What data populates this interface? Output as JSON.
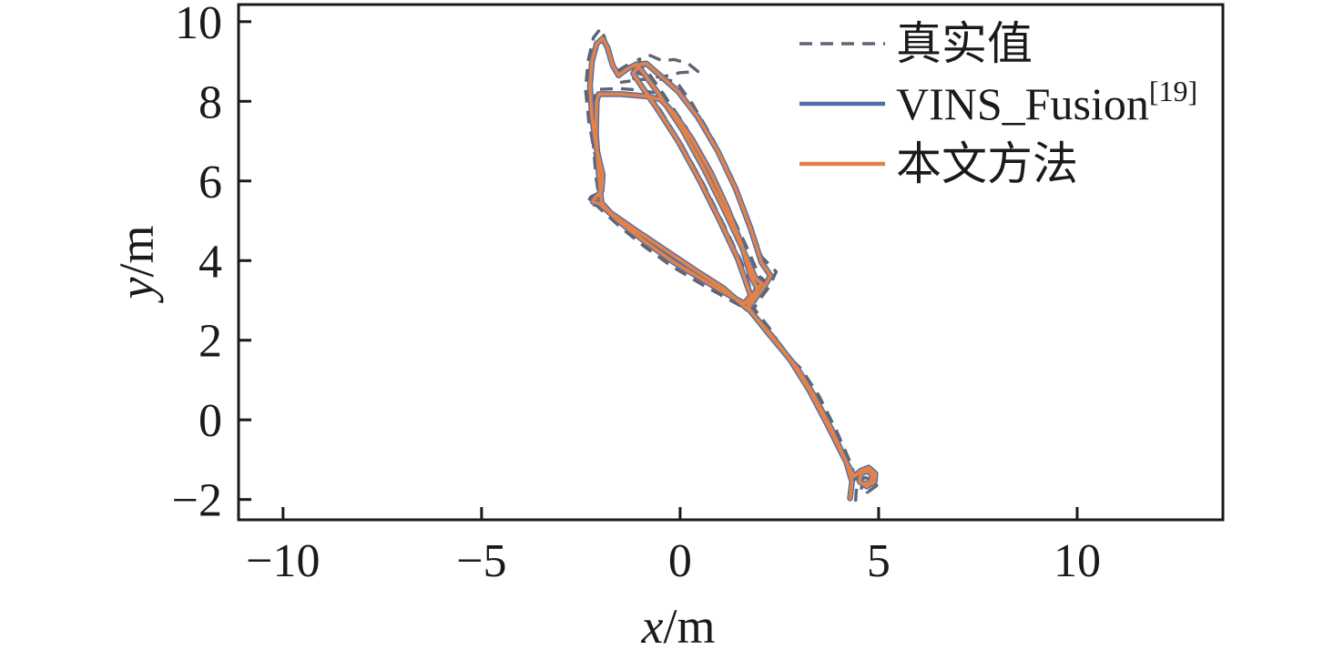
{
  "figure": {
    "description": "Trajectory comparison plot of ground truth vs VINS_Fusion vs proposed method"
  },
  "chart_data": {
    "type": "line",
    "title": "",
    "xlabel_var": "x",
    "xlabel_unit": "/m",
    "ylabel_var": "y",
    "ylabel_unit": "/m",
    "xlim": [
      -11.12,
      13.67
    ],
    "ylim": [
      -2.51,
      10.43
    ],
    "xticks": [
      -10,
      -5,
      0,
      5,
      10
    ],
    "yticks": [
      10,
      8,
      6,
      4,
      2,
      0,
      -2
    ],
    "grid": false,
    "legend_position": "top-right-inside",
    "background": "#ffffff",
    "axis_color": "#1a1a1a",
    "series": [
      {
        "label": "真实值",
        "superscript": "",
        "color": "#5d6573",
        "width": 3.4,
        "dash": [
          14,
          9
        ],
        "points": [
          [
            4.42,
            -2.05
          ],
          [
            4.45,
            -1.6
          ],
          [
            4.3,
            -1.1
          ],
          [
            3.95,
            -0.3
          ],
          [
            3.5,
            0.6
          ],
          [
            3.05,
            1.28
          ],
          [
            2.8,
            1.52
          ],
          [
            2.4,
            2.05
          ],
          [
            1.95,
            2.55
          ],
          [
            1.82,
            2.78
          ],
          [
            1.9,
            3.0
          ],
          [
            2.05,
            3.2
          ],
          [
            2.18,
            3.45
          ],
          [
            2.0,
            3.6
          ],
          [
            1.65,
            4.4
          ],
          [
            1.2,
            5.35
          ],
          [
            0.7,
            6.35
          ],
          [
            0.15,
            7.35
          ],
          [
            -0.5,
            8.3
          ],
          [
            -0.9,
            8.85
          ],
          [
            -1.05,
            9.05
          ],
          [
            -0.75,
            9.15
          ],
          [
            -0.45,
            9.02
          ],
          [
            -0.15,
            9.05
          ],
          [
            0.2,
            8.95
          ],
          [
            0.45,
            8.75
          ],
          [
            0.0,
            8.72
          ],
          [
            -0.5,
            8.6
          ],
          [
            -1.0,
            8.68
          ],
          [
            -1.35,
            8.9
          ],
          [
            -1.6,
            8.75
          ],
          [
            -1.78,
            9.05
          ],
          [
            -1.9,
            9.6
          ],
          [
            -2.0,
            9.83
          ],
          [
            -2.18,
            9.6
          ],
          [
            -2.32,
            9.0
          ],
          [
            -2.38,
            8.3
          ],
          [
            -2.3,
            7.5
          ],
          [
            -2.15,
            6.7
          ],
          [
            -2.0,
            6.1
          ],
          [
            -2.05,
            5.7
          ],
          [
            -2.25,
            5.6
          ],
          [
            -2.33,
            5.45
          ],
          [
            -2.1,
            5.38
          ],
          [
            -1.55,
            4.88
          ],
          [
            -0.9,
            4.35
          ],
          [
            -0.2,
            3.85
          ],
          [
            0.55,
            3.4
          ],
          [
            1.18,
            3.05
          ],
          [
            1.6,
            2.82
          ],
          [
            1.85,
            3.05
          ],
          [
            1.55,
            3.95
          ],
          [
            1.1,
            4.9
          ],
          [
            0.6,
            5.9
          ],
          [
            0.05,
            6.9
          ],
          [
            -0.5,
            7.78
          ],
          [
            -0.88,
            8.3
          ],
          [
            -1.12,
            8.6
          ],
          [
            -1.3,
            8.5
          ],
          [
            -1.48,
            8.48
          ],
          [
            -0.95,
            8.55
          ],
          [
            -0.45,
            8.55
          ],
          [
            -0.1,
            8.5
          ],
          [
            0.3,
            7.95
          ],
          [
            0.8,
            7.1
          ],
          [
            1.28,
            6.15
          ],
          [
            1.7,
            5.1
          ],
          [
            2.05,
            4.1
          ],
          [
            2.42,
            3.72
          ],
          [
            2.25,
            3.35
          ],
          [
            1.95,
            2.95
          ],
          [
            1.82,
            2.72
          ],
          [
            1.2,
            3.22
          ],
          [
            0.5,
            3.68
          ],
          [
            -0.3,
            4.18
          ],
          [
            -1.05,
            4.68
          ],
          [
            -1.7,
            5.12
          ],
          [
            -2.0,
            5.35
          ],
          [
            -2.12,
            6.1
          ],
          [
            -2.2,
            7.1
          ],
          [
            -2.18,
            7.95
          ],
          [
            -2.1,
            8.3
          ],
          [
            -1.55,
            8.32
          ],
          [
            -1.0,
            8.28
          ],
          [
            -0.6,
            8.2
          ],
          [
            -0.2,
            7.8
          ],
          [
            0.25,
            7.15
          ],
          [
            0.72,
            6.3
          ],
          [
            1.15,
            5.4
          ],
          [
            1.5,
            4.5
          ],
          [
            1.72,
            3.7
          ],
          [
            1.9,
            3.35
          ],
          [
            1.78,
            2.9
          ],
          [
            2.25,
            2.3
          ],
          [
            2.68,
            1.62
          ],
          [
            2.9,
            1.3
          ],
          [
            3.35,
            0.55
          ],
          [
            3.85,
            -0.35
          ],
          [
            4.25,
            -1.15
          ],
          [
            4.5,
            -1.55
          ],
          [
            4.65,
            -1.45
          ],
          [
            4.85,
            -1.5
          ],
          [
            4.95,
            -1.65
          ],
          [
            4.75,
            -1.8
          ],
          [
            4.55,
            -1.78
          ],
          [
            4.6,
            -1.6
          ],
          [
            4.78,
            -1.62
          ],
          [
            4.7,
            -1.85
          ]
        ]
      },
      {
        "label": "VINS_Fusion",
        "superscript": "[19]",
        "color": "#4f6da6",
        "width": 6.5,
        "dash": null,
        "points": [
          [
            4.28,
            -1.97
          ],
          [
            4.33,
            -1.55
          ],
          [
            4.18,
            -1.05
          ],
          [
            3.82,
            -0.25
          ],
          [
            3.35,
            0.65
          ],
          [
            2.95,
            1.3
          ],
          [
            2.72,
            1.58
          ],
          [
            2.3,
            2.12
          ],
          [
            1.86,
            2.62
          ],
          [
            1.7,
            2.82
          ],
          [
            1.77,
            3.05
          ],
          [
            1.92,
            3.25
          ],
          [
            2.06,
            3.42
          ],
          [
            1.9,
            3.55
          ],
          [
            1.55,
            4.35
          ],
          [
            1.1,
            5.3
          ],
          [
            0.6,
            6.3
          ],
          [
            0.05,
            7.3
          ],
          [
            -0.55,
            8.2
          ],
          [
            -0.95,
            8.75
          ],
          [
            -1.1,
            8.93
          ],
          [
            -1.35,
            8.8
          ],
          [
            -1.55,
            8.65
          ],
          [
            -1.7,
            8.9
          ],
          [
            -1.83,
            9.35
          ],
          [
            -1.95,
            9.58
          ],
          [
            -2.1,
            9.45
          ],
          [
            -2.22,
            9.0
          ],
          [
            -2.27,
            8.4
          ],
          [
            -2.22,
            7.6
          ],
          [
            -2.1,
            6.8
          ],
          [
            -1.95,
            6.15
          ],
          [
            -1.98,
            5.75
          ],
          [
            -2.12,
            5.6
          ],
          [
            -2.2,
            5.48
          ],
          [
            -2.02,
            5.42
          ],
          [
            -1.5,
            4.95
          ],
          [
            -0.85,
            4.45
          ],
          [
            -0.15,
            3.95
          ],
          [
            0.6,
            3.5
          ],
          [
            1.2,
            3.15
          ],
          [
            1.62,
            2.92
          ],
          [
            1.78,
            3.12
          ],
          [
            1.45,
            4.05
          ],
          [
            1.0,
            5.0
          ],
          [
            0.5,
            6.0
          ],
          [
            -0.05,
            7.0
          ],
          [
            -0.6,
            7.85
          ],
          [
            -0.95,
            8.35
          ],
          [
            -1.18,
            8.7
          ],
          [
            -1.02,
            8.92
          ],
          [
            -0.85,
            8.95
          ],
          [
            -0.45,
            8.6
          ],
          [
            -0.05,
            8.25
          ],
          [
            0.45,
            7.6
          ],
          [
            0.95,
            6.75
          ],
          [
            1.4,
            5.8
          ],
          [
            1.78,
            4.8
          ],
          [
            2.05,
            3.95
          ],
          [
            2.28,
            3.62
          ],
          [
            2.1,
            3.32
          ],
          [
            1.85,
            3.0
          ],
          [
            1.7,
            2.78
          ],
          [
            1.1,
            3.3
          ],
          [
            0.4,
            3.75
          ],
          [
            -0.35,
            4.25
          ],
          [
            -1.1,
            4.75
          ],
          [
            -1.75,
            5.2
          ],
          [
            -1.98,
            5.45
          ],
          [
            -2.05,
            6.2
          ],
          [
            -2.12,
            7.2
          ],
          [
            -2.1,
            8.0
          ],
          [
            -2.05,
            8.18
          ],
          [
            -1.5,
            8.18
          ],
          [
            -0.9,
            8.13
          ],
          [
            -0.5,
            8.05
          ],
          [
            -0.15,
            7.7
          ],
          [
            0.3,
            7.05
          ],
          [
            0.78,
            6.2
          ],
          [
            1.2,
            5.3
          ],
          [
            1.55,
            4.4
          ],
          [
            1.78,
            3.6
          ],
          [
            1.95,
            3.3
          ],
          [
            1.72,
            2.8
          ],
          [
            2.2,
            2.2
          ],
          [
            2.6,
            1.72
          ],
          [
            2.78,
            1.5
          ],
          [
            3.25,
            0.75
          ],
          [
            3.7,
            -0.1
          ],
          [
            4.1,
            -0.9
          ],
          [
            4.38,
            -1.42
          ],
          [
            4.55,
            -1.28
          ],
          [
            4.75,
            -1.2
          ],
          [
            4.92,
            -1.35
          ],
          [
            4.9,
            -1.55
          ],
          [
            4.7,
            -1.67
          ],
          [
            4.52,
            -1.55
          ],
          [
            4.55,
            -1.35
          ],
          [
            4.72,
            -1.28
          ],
          [
            4.85,
            -1.4
          ],
          [
            4.78,
            -1.58
          ],
          [
            4.62,
            -1.6
          ]
        ]
      },
      {
        "label": "本文方法",
        "superscript": "",
        "color": "#e0824a",
        "width": 3.8,
        "dash": null,
        "points": [
          [
            4.28,
            -1.97
          ],
          [
            4.33,
            -1.55
          ],
          [
            4.18,
            -1.05
          ],
          [
            3.82,
            -0.25
          ],
          [
            3.35,
            0.65
          ],
          [
            2.95,
            1.3
          ],
          [
            2.72,
            1.58
          ],
          [
            2.3,
            2.12
          ],
          [
            1.86,
            2.62
          ],
          [
            1.7,
            2.82
          ],
          [
            1.77,
            3.05
          ],
          [
            1.92,
            3.25
          ],
          [
            2.06,
            3.42
          ],
          [
            1.9,
            3.55
          ],
          [
            1.55,
            4.35
          ],
          [
            1.1,
            5.3
          ],
          [
            0.6,
            6.3
          ],
          [
            0.05,
            7.3
          ],
          [
            -0.55,
            8.2
          ],
          [
            -0.95,
            8.75
          ],
          [
            -1.1,
            8.93
          ],
          [
            -1.35,
            8.8
          ],
          [
            -1.55,
            8.65
          ],
          [
            -1.7,
            8.9
          ],
          [
            -1.83,
            9.35
          ],
          [
            -1.95,
            9.58
          ],
          [
            -2.1,
            9.45
          ],
          [
            -2.22,
            9.0
          ],
          [
            -2.27,
            8.4
          ],
          [
            -2.22,
            7.6
          ],
          [
            -2.1,
            6.8
          ],
          [
            -1.95,
            6.15
          ],
          [
            -1.98,
            5.75
          ],
          [
            -2.12,
            5.6
          ],
          [
            -2.2,
            5.48
          ],
          [
            -2.02,
            5.42
          ],
          [
            -1.5,
            4.95
          ],
          [
            -0.85,
            4.45
          ],
          [
            -0.15,
            3.95
          ],
          [
            0.6,
            3.5
          ],
          [
            1.2,
            3.15
          ],
          [
            1.62,
            2.92
          ],
          [
            1.78,
            3.12
          ],
          [
            1.45,
            4.05
          ],
          [
            1.0,
            5.0
          ],
          [
            0.5,
            6.0
          ],
          [
            -0.05,
            7.0
          ],
          [
            -0.6,
            7.85
          ],
          [
            -0.95,
            8.35
          ],
          [
            -1.18,
            8.7
          ],
          [
            -1.02,
            8.92
          ],
          [
            -0.85,
            8.95
          ],
          [
            -0.45,
            8.6
          ],
          [
            -0.05,
            8.25
          ],
          [
            0.45,
            7.6
          ],
          [
            0.95,
            6.75
          ],
          [
            1.4,
            5.8
          ],
          [
            1.78,
            4.8
          ],
          [
            2.05,
            3.95
          ],
          [
            2.28,
            3.62
          ],
          [
            2.1,
            3.32
          ],
          [
            1.85,
            3.0
          ],
          [
            1.7,
            2.78
          ],
          [
            1.1,
            3.3
          ],
          [
            0.4,
            3.75
          ],
          [
            -0.35,
            4.25
          ],
          [
            -1.1,
            4.75
          ],
          [
            -1.75,
            5.2
          ],
          [
            -1.98,
            5.45
          ],
          [
            -2.05,
            6.2
          ],
          [
            -2.12,
            7.2
          ],
          [
            -2.1,
            8.0
          ],
          [
            -2.05,
            8.18
          ],
          [
            -1.5,
            8.18
          ],
          [
            -0.9,
            8.13
          ],
          [
            -0.5,
            8.05
          ],
          [
            -0.15,
            7.7
          ],
          [
            0.3,
            7.05
          ],
          [
            0.78,
            6.2
          ],
          [
            1.2,
            5.3
          ],
          [
            1.55,
            4.4
          ],
          [
            1.78,
            3.6
          ],
          [
            1.95,
            3.3
          ],
          [
            1.72,
            2.8
          ],
          [
            2.2,
            2.2
          ],
          [
            2.6,
            1.72
          ],
          [
            2.78,
            1.5
          ],
          [
            3.25,
            0.75
          ],
          [
            3.7,
            -0.1
          ],
          [
            4.1,
            -0.9
          ],
          [
            4.38,
            -1.42
          ],
          [
            4.55,
            -1.28
          ],
          [
            4.75,
            -1.2
          ],
          [
            4.92,
            -1.35
          ],
          [
            4.9,
            -1.55
          ],
          [
            4.7,
            -1.67
          ],
          [
            4.52,
            -1.55
          ],
          [
            4.55,
            -1.35
          ],
          [
            4.72,
            -1.28
          ],
          [
            4.85,
            -1.4
          ],
          [
            4.78,
            -1.58
          ],
          [
            4.62,
            -1.6
          ]
        ]
      }
    ]
  }
}
